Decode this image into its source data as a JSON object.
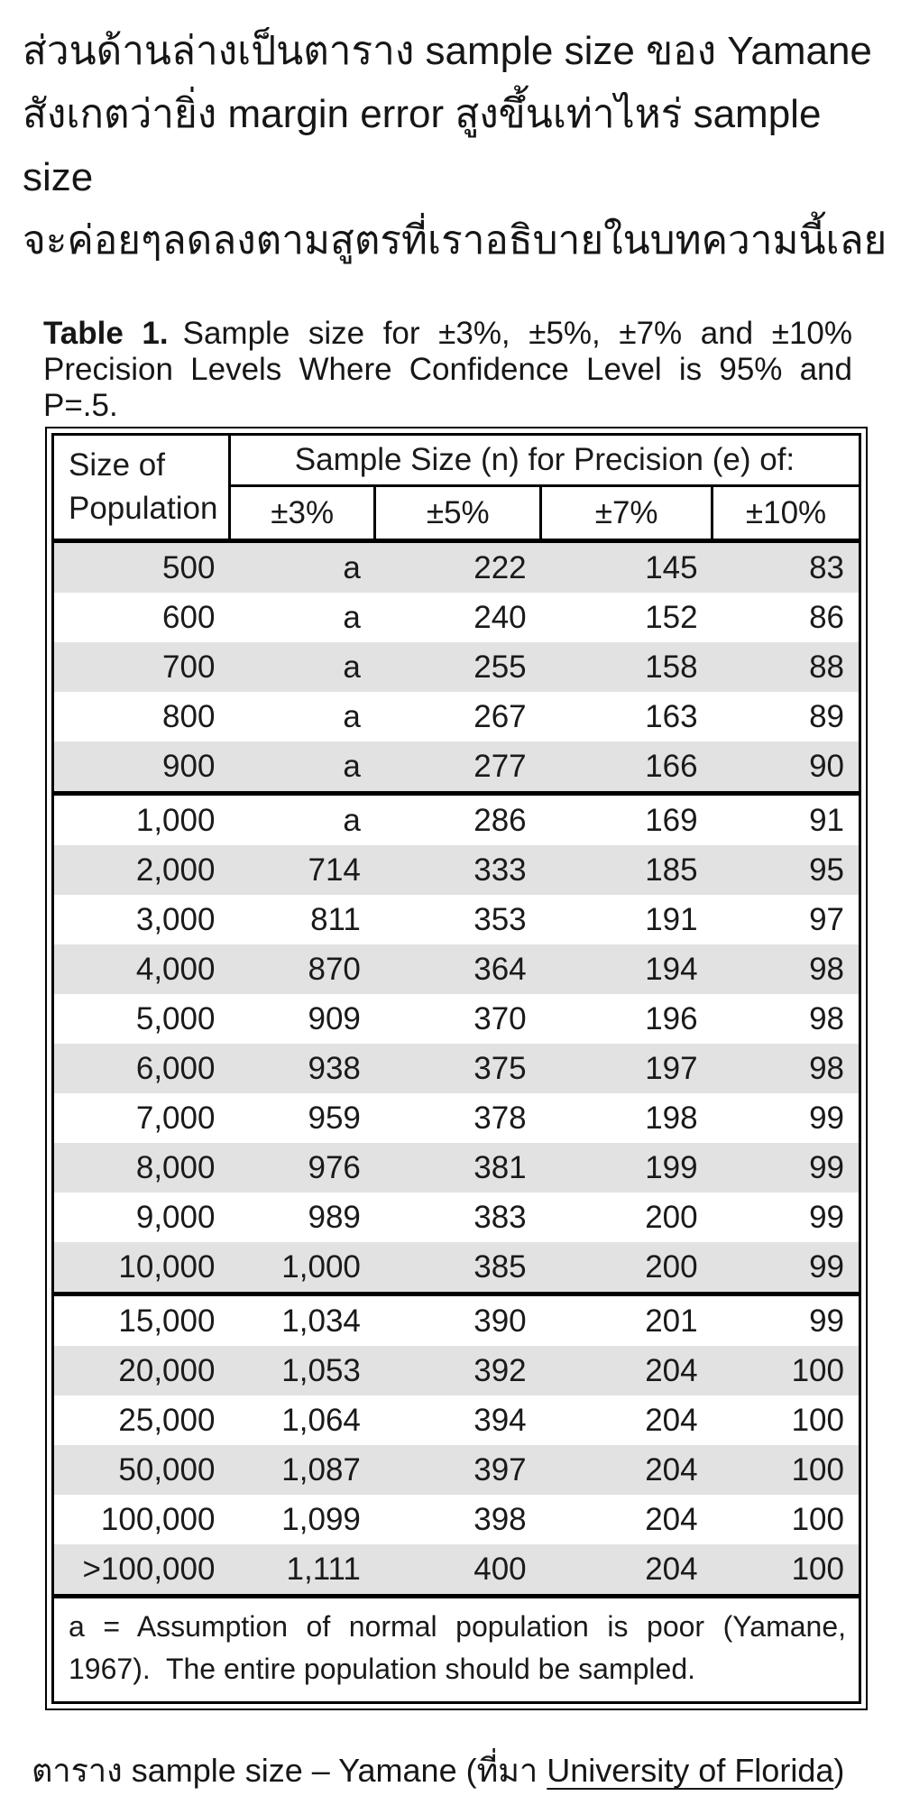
{
  "intro": {
    "lines": [
      "ส่วนด้านล่างเป็นตาราง sample size ของ Yamane",
      "สังเกตว่ายิ่ง margin error สูงขึ้นเท่าไหร่ sample size",
      "จะค่อยๆลดลงตามสูตรที่เราอธิบายในบทความนี้เลย"
    ]
  },
  "table_title": {
    "label": "Table 1.",
    "line1_rest": "Sample size for ±3%, ±5%, ±7% and ±10%",
    "line2": "Precision Levels Where Confidence Level is 95% and",
    "line3": "P=.5."
  },
  "table": {
    "header": {
      "col1_line1": "Size of",
      "col1_line2": "Population",
      "span": "Sample Size (n) for Precision (e) of:",
      "precisions": [
        "±3%",
        "±5%",
        "±7%",
        "±10%"
      ]
    },
    "sections": [
      {
        "rows": [
          [
            "500",
            "a",
            "222",
            "145",
            "83"
          ],
          [
            "600",
            "a",
            "240",
            "152",
            "86"
          ],
          [
            "700",
            "a",
            "255",
            "158",
            "88"
          ],
          [
            "800",
            "a",
            "267",
            "163",
            "89"
          ],
          [
            "900",
            "a",
            "277",
            "166",
            "90"
          ]
        ]
      },
      {
        "rows": [
          [
            "1,000",
            "a",
            "286",
            "169",
            "91"
          ],
          [
            "2,000",
            "714",
            "333",
            "185",
            "95"
          ],
          [
            "3,000",
            "811",
            "353",
            "191",
            "97"
          ],
          [
            "4,000",
            "870",
            "364",
            "194",
            "98"
          ],
          [
            "5,000",
            "909",
            "370",
            "196",
            "98"
          ],
          [
            "6,000",
            "938",
            "375",
            "197",
            "98"
          ],
          [
            "7,000",
            "959",
            "378",
            "198",
            "99"
          ],
          [
            "8,000",
            "976",
            "381",
            "199",
            "99"
          ],
          [
            "9,000",
            "989",
            "383",
            "200",
            "99"
          ],
          [
            "10,000",
            "1,000",
            "385",
            "200",
            "99"
          ]
        ]
      },
      {
        "rows": [
          [
            "15,000",
            "1,034",
            "390",
            "201",
            "99"
          ],
          [
            "20,000",
            "1,053",
            "392",
            "204",
            "100"
          ],
          [
            "25,000",
            "1,064",
            "394",
            "204",
            "100"
          ],
          [
            "50,000",
            "1,087",
            "397",
            "204",
            "100"
          ],
          [
            "100,000",
            "1,099",
            "398",
            "204",
            "100"
          ],
          [
            ">100,000",
            "1,111",
            "400",
            "204",
            "100"
          ]
        ]
      }
    ],
    "footnote": {
      "line1": "a = Assumption of normal population is poor (Yamane,",
      "line2": "1967).  The entire population should be sampled."
    }
  },
  "caption": {
    "prefix": "ตาราง sample size – Yamane (ที่มา ",
    "link": "University of Florida",
    "suffix": ")"
  },
  "colors": {
    "row_shade": "#e2e2e2",
    "border": "#000000",
    "text": "#1a1a1a"
  }
}
